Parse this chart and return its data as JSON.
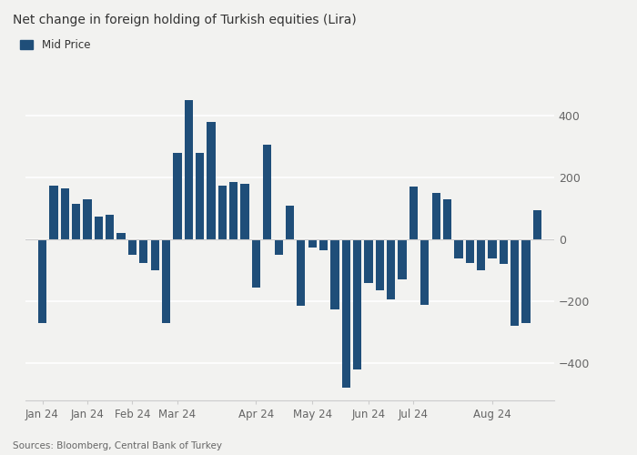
{
  "title": "Net change in foreign holding of Turkish equities (Lira)",
  "legend_label": "Mid Price",
  "source": "Sources: Bloomberg, Central Bank of Turkey",
  "bar_color": "#1f4e79",
  "background_color": "#f2f2f0",
  "grid_color": "#ffffff",
  "spine_color": "#cccccc",
  "text_color": "#333333",
  "tick_color": "#666666",
  "ylim": [
    -520,
    450
  ],
  "yticks": [
    -400,
    -200,
    0,
    200,
    400
  ],
  "values": [
    -270,
    175,
    165,
    115,
    130,
    75,
    80,
    20,
    -50,
    -75,
    -100,
    -270,
    280,
    460,
    280,
    380,
    175,
    185,
    180,
    -155,
    305,
    -50,
    110,
    -215,
    -25,
    -35,
    -225,
    -480,
    -420,
    -140,
    -165,
    -195,
    -130,
    170,
    -210,
    150,
    130,
    -60,
    -75,
    -100,
    -60,
    -80,
    -280,
    -270,
    95
  ],
  "xtick_positions": [
    0,
    4,
    8,
    12,
    19,
    24,
    29,
    33,
    40
  ],
  "xtick_labels": [
    "Jan 24",
    "Jan 24",
    "Feb 24",
    "Mar 24",
    "Apr 24",
    "May 24",
    "Jun 24",
    "Jul 24",
    "Aug 24"
  ]
}
